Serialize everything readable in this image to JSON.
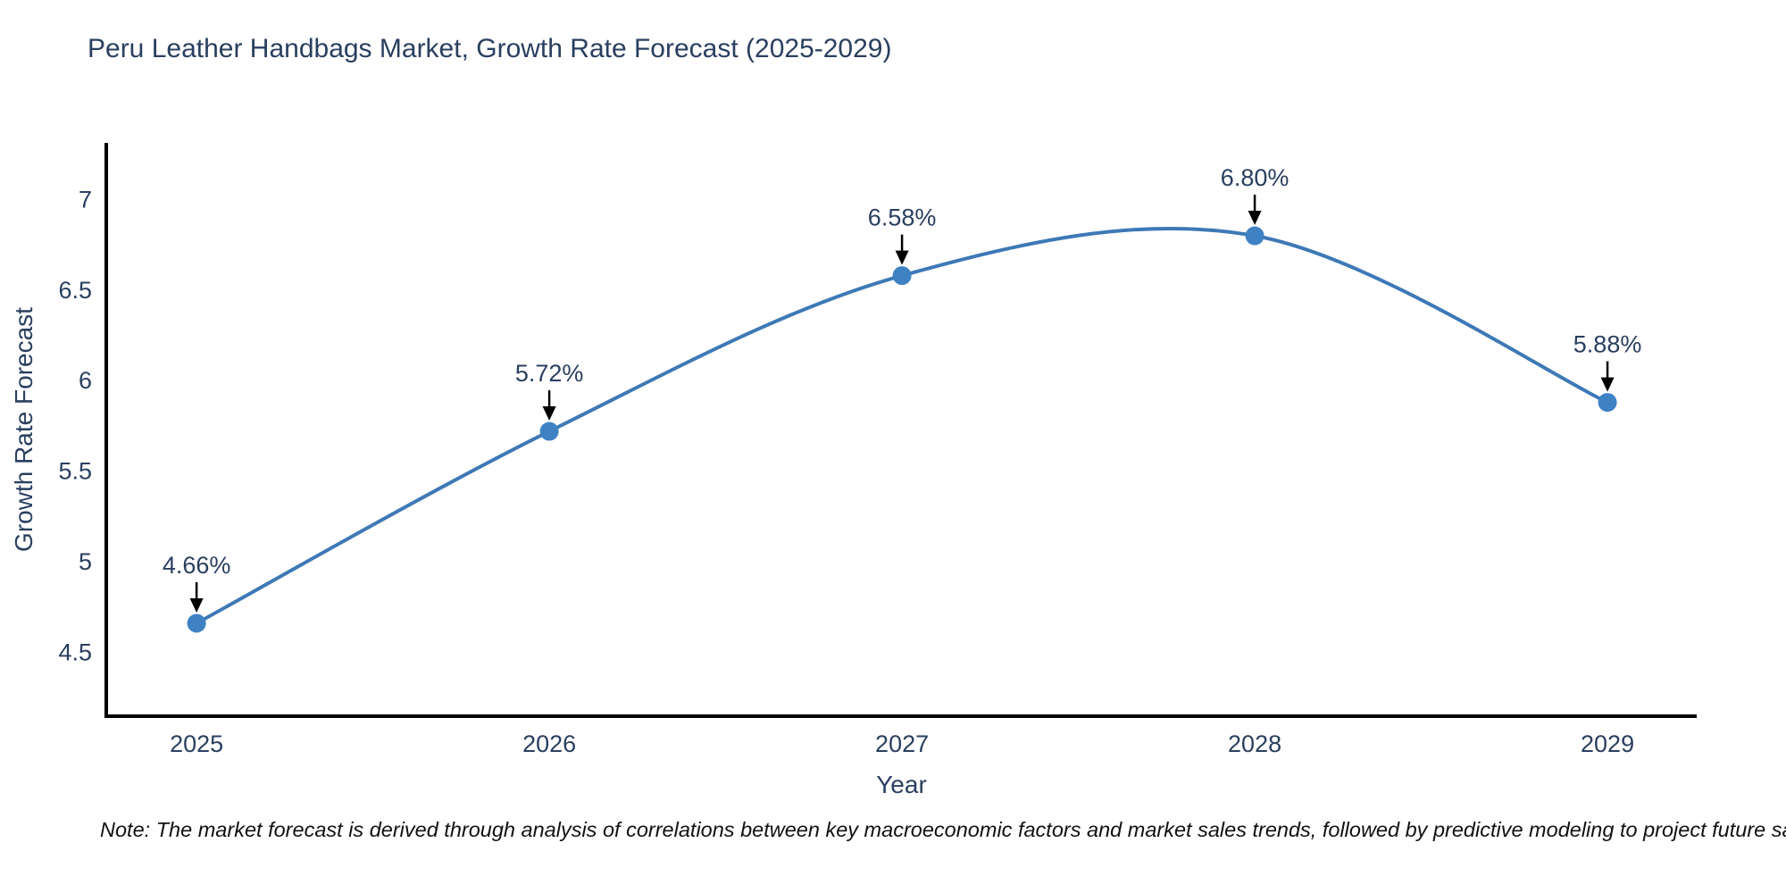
{
  "title": "Peru Leather Handbags Market, Growth Rate Forecast (2025-2029)",
  "note": "Note: The market forecast is derived through analysis of correlations between key macroeconomic factors and market sales trends, followed by predictive modeling to project future sales",
  "chart_data": {
    "type": "line",
    "line_shape": "spline",
    "title": "Peru Leather Handbags Market, Growth Rate Forecast (2025-2029)",
    "xlabel": "Year",
    "ylabel": "Growth Rate Forecast",
    "x": [
      2025,
      2026,
      2027,
      2028,
      2029
    ],
    "values": [
      4.66,
      5.72,
      6.58,
      6.8,
      5.88
    ],
    "point_labels": [
      "4.66%",
      "5.72%",
      "6.58%",
      "6.80%",
      "5.88%"
    ],
    "x_tick_labels": [
      "2025",
      "2026",
      "2027",
      "2028",
      "2029"
    ],
    "y_tick_values": [
      4.5,
      5,
      5.5,
      6,
      6.5,
      7
    ],
    "xlim": [
      2024.744,
      2029.253
    ],
    "ylim": [
      4.147,
      7.313
    ],
    "grid": false,
    "legend_position": "none",
    "annotations_have_arrows": true,
    "colors": {
      "line": "#3e79b6",
      "marker": "#3f82c4",
      "axis_line": "#000000",
      "tick_text": "#2a3f5f",
      "annotation_text": "#2a3f5f",
      "arrow": "#000000",
      "title_text": "#2a3f5f",
      "background": "#ffffff"
    }
  }
}
